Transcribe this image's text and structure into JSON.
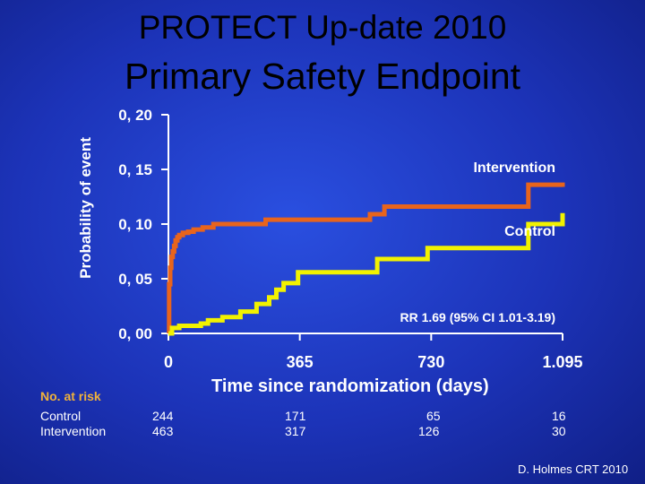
{
  "title_line1": "PROTECT Up-date 2010",
  "title_line2": "Primary Safety Endpoint",
  "credit": "D. Holmes CRT 2010",
  "colors": {
    "background": "#1c33b8",
    "intervention": "#e8641c",
    "control": "#f2f200",
    "annotation": "#ffffff",
    "risk_title": "#f0b23a"
  },
  "chart_data": {
    "type": "line",
    "xlabel": "Time since randomization (days)",
    "ylabel": "Probability of event",
    "xlim": [
      0,
      1095
    ],
    "ylim": [
      0,
      0.2
    ],
    "x_ticks": [
      0,
      365,
      730,
      1095
    ],
    "x_tick_labels": [
      "0",
      "365",
      "730",
      "1.095"
    ],
    "y_ticks": [
      0,
      0.05,
      0.1,
      0.15,
      0.2
    ],
    "y_tick_labels": [
      "0, 00",
      "0, 05",
      "0, 10",
      "0, 15",
      "0, 20"
    ],
    "grid": false,
    "series": [
      {
        "name": "Intervention",
        "step": true,
        "x": [
          0,
          2,
          5,
          8,
          12,
          16,
          20,
          25,
          30,
          40,
          55,
          70,
          95,
          125,
          270,
          560,
          600,
          1000,
          1095
        ],
        "y": [
          0,
          0.045,
          0.06,
          0.07,
          0.075,
          0.08,
          0.085,
          0.088,
          0.09,
          0.092,
          0.093,
          0.095,
          0.097,
          0.1,
          0.104,
          0.109,
          0.116,
          0.136,
          0.134
        ]
      },
      {
        "name": "Control",
        "step": true,
        "x": [
          0,
          10,
          30,
          90,
          110,
          150,
          200,
          245,
          280,
          300,
          320,
          360,
          580,
          720,
          1000,
          1095
        ],
        "y": [
          0,
          0.005,
          0.007,
          0.009,
          0.012,
          0.015,
          0.02,
          0.027,
          0.033,
          0.04,
          0.046,
          0.056,
          0.068,
          0.078,
          0.1,
          0.11
        ]
      }
    ],
    "annotations": {
      "intervention_label": "Intervention",
      "control_label": "Control",
      "rr": "RR 1.69 (95% CI 1.01-3.19)"
    }
  },
  "risk_table": {
    "title": "No. at risk",
    "control_label": "Control",
    "intervention_label": "Intervention",
    "columns": [
      {
        "control": "244",
        "intervention": "463"
      },
      {
        "control": "171",
        "intervention": "317"
      },
      {
        "control": "65",
        "intervention": "126"
      },
      {
        "control": "16",
        "intervention": "30"
      }
    ]
  }
}
